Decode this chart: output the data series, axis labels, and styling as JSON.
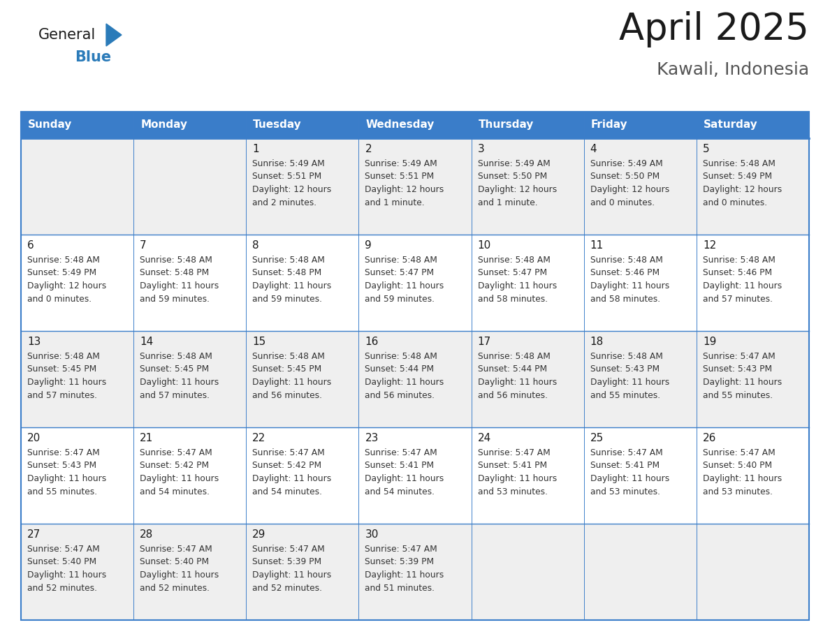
{
  "title": "April 2025",
  "subtitle": "Kawali, Indonesia",
  "header_bg": "#3A7DC9",
  "header_text_color": "#FFFFFF",
  "row_bg_even": "#EFEFEF",
  "row_bg_odd": "#FFFFFF",
  "border_color": "#3A7DC9",
  "day_names": [
    "Sunday",
    "Monday",
    "Tuesday",
    "Wednesday",
    "Thursday",
    "Friday",
    "Saturday"
  ],
  "title_color": "#1a1a1a",
  "subtitle_color": "#555555",
  "cell_text_color": "#333333",
  "day_num_color": "#1a1a1a",
  "logo_black": "#1a1a1a",
  "logo_blue": "#2B7BB9",
  "calendar": [
    [
      {
        "day": "",
        "sunrise": "",
        "sunset": "",
        "daylight": ""
      },
      {
        "day": "",
        "sunrise": "",
        "sunset": "",
        "daylight": ""
      },
      {
        "day": "1",
        "sunrise": "5:49 AM",
        "sunset": "5:51 PM",
        "daylight": "12 hours and 2 minutes."
      },
      {
        "day": "2",
        "sunrise": "5:49 AM",
        "sunset": "5:51 PM",
        "daylight": "12 hours and 1 minute."
      },
      {
        "day": "3",
        "sunrise": "5:49 AM",
        "sunset": "5:50 PM",
        "daylight": "12 hours and 1 minute."
      },
      {
        "day": "4",
        "sunrise": "5:49 AM",
        "sunset": "5:50 PM",
        "daylight": "12 hours and 0 minutes."
      },
      {
        "day": "5",
        "sunrise": "5:48 AM",
        "sunset": "5:49 PM",
        "daylight": "12 hours and 0 minutes."
      }
    ],
    [
      {
        "day": "6",
        "sunrise": "5:48 AM",
        "sunset": "5:49 PM",
        "daylight": "12 hours and 0 minutes."
      },
      {
        "day": "7",
        "sunrise": "5:48 AM",
        "sunset": "5:48 PM",
        "daylight": "11 hours and 59 minutes."
      },
      {
        "day": "8",
        "sunrise": "5:48 AM",
        "sunset": "5:48 PM",
        "daylight": "11 hours and 59 minutes."
      },
      {
        "day": "9",
        "sunrise": "5:48 AM",
        "sunset": "5:47 PM",
        "daylight": "11 hours and 59 minutes."
      },
      {
        "day": "10",
        "sunrise": "5:48 AM",
        "sunset": "5:47 PM",
        "daylight": "11 hours and 58 minutes."
      },
      {
        "day": "11",
        "sunrise": "5:48 AM",
        "sunset": "5:46 PM",
        "daylight": "11 hours and 58 minutes."
      },
      {
        "day": "12",
        "sunrise": "5:48 AM",
        "sunset": "5:46 PM",
        "daylight": "11 hours and 57 minutes."
      }
    ],
    [
      {
        "day": "13",
        "sunrise": "5:48 AM",
        "sunset": "5:45 PM",
        "daylight": "11 hours and 57 minutes."
      },
      {
        "day": "14",
        "sunrise": "5:48 AM",
        "sunset": "5:45 PM",
        "daylight": "11 hours and 57 minutes."
      },
      {
        "day": "15",
        "sunrise": "5:48 AM",
        "sunset": "5:45 PM",
        "daylight": "11 hours and 56 minutes."
      },
      {
        "day": "16",
        "sunrise": "5:48 AM",
        "sunset": "5:44 PM",
        "daylight": "11 hours and 56 minutes."
      },
      {
        "day": "17",
        "sunrise": "5:48 AM",
        "sunset": "5:44 PM",
        "daylight": "11 hours and 56 minutes."
      },
      {
        "day": "18",
        "sunrise": "5:48 AM",
        "sunset": "5:43 PM",
        "daylight": "11 hours and 55 minutes."
      },
      {
        "day": "19",
        "sunrise": "5:47 AM",
        "sunset": "5:43 PM",
        "daylight": "11 hours and 55 minutes."
      }
    ],
    [
      {
        "day": "20",
        "sunrise": "5:47 AM",
        "sunset": "5:43 PM",
        "daylight": "11 hours and 55 minutes."
      },
      {
        "day": "21",
        "sunrise": "5:47 AM",
        "sunset": "5:42 PM",
        "daylight": "11 hours and 54 minutes."
      },
      {
        "day": "22",
        "sunrise": "5:47 AM",
        "sunset": "5:42 PM",
        "daylight": "11 hours and 54 minutes."
      },
      {
        "day": "23",
        "sunrise": "5:47 AM",
        "sunset": "5:41 PM",
        "daylight": "11 hours and 54 minutes."
      },
      {
        "day": "24",
        "sunrise": "5:47 AM",
        "sunset": "5:41 PM",
        "daylight": "11 hours and 53 minutes."
      },
      {
        "day": "25",
        "sunrise": "5:47 AM",
        "sunset": "5:41 PM",
        "daylight": "11 hours and 53 minutes."
      },
      {
        "day": "26",
        "sunrise": "5:47 AM",
        "sunset": "5:40 PM",
        "daylight": "11 hours and 53 minutes."
      }
    ],
    [
      {
        "day": "27",
        "sunrise": "5:47 AM",
        "sunset": "5:40 PM",
        "daylight": "11 hours and 52 minutes."
      },
      {
        "day": "28",
        "sunrise": "5:47 AM",
        "sunset": "5:40 PM",
        "daylight": "11 hours and 52 minutes."
      },
      {
        "day": "29",
        "sunrise": "5:47 AM",
        "sunset": "5:39 PM",
        "daylight": "11 hours and 52 minutes."
      },
      {
        "day": "30",
        "sunrise": "5:47 AM",
        "sunset": "5:39 PM",
        "daylight": "11 hours and 51 minutes."
      },
      {
        "day": "",
        "sunrise": "",
        "sunset": "",
        "daylight": ""
      },
      {
        "day": "",
        "sunrise": "",
        "sunset": "",
        "daylight": ""
      },
      {
        "day": "",
        "sunrise": "",
        "sunset": "",
        "daylight": ""
      }
    ]
  ]
}
